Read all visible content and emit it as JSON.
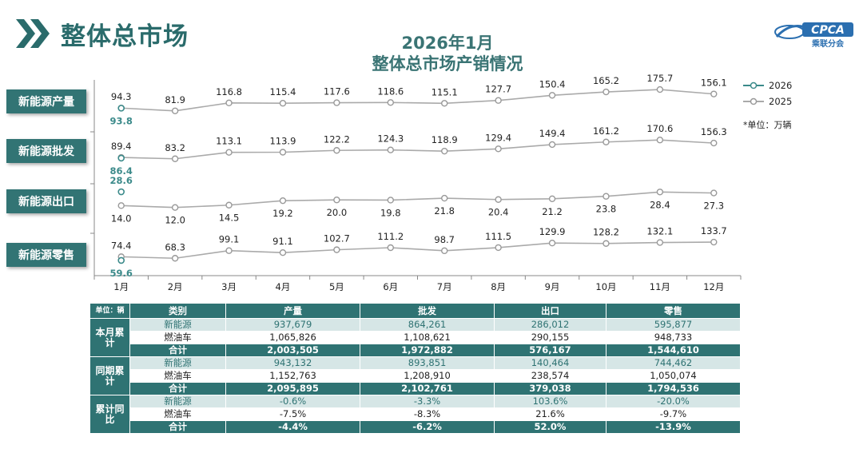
{
  "header": {
    "title": "整体总市场",
    "chart_title_line1": "2026年1月",
    "chart_title_line2": "整体总市场产销情况"
  },
  "logo": {
    "main": "CPCA",
    "sub": "乘联分会"
  },
  "legend": {
    "series_2026": "2026",
    "series_2025": "2025"
  },
  "unit_note": "*单位：万辆",
  "colors": {
    "accent": "#327474",
    "series_2026": "#3b8a8a",
    "series_2025": "#aaaaaa",
    "table_light": "#d6e6e6"
  },
  "chart_data": {
    "type": "line",
    "x": [
      "1月",
      "2月",
      "3月",
      "4月",
      "5月",
      "6月",
      "7月",
      "8月",
      "9月",
      "10月",
      "11月",
      "12月"
    ],
    "unit": "万辆",
    "panels": [
      {
        "label": "新能源产量",
        "series": [
          {
            "name": "2025",
            "values": [
              94.3,
              81.9,
              116.8,
              115.4,
              117.6,
              118.6,
              115.1,
              127.7,
              150.4,
              165.2,
              175.7,
              156.1
            ]
          },
          {
            "name": "2026",
            "values": [
              93.8
            ]
          }
        ]
      },
      {
        "label": "新能源批发",
        "series": [
          {
            "name": "2025",
            "values": [
              89.4,
              83.2,
              113.1,
              113.9,
              122.2,
              124.3,
              118.9,
              129.4,
              149.4,
              161.2,
              170.6,
              156.3
            ]
          },
          {
            "name": "2026",
            "values": [
              86.4
            ]
          }
        ]
      },
      {
        "label": "新能源出口",
        "series": [
          {
            "name": "2025",
            "values": [
              14.0,
              12.0,
              14.5,
              19.2,
              20.0,
              19.8,
              21.8,
              20.4,
              21.2,
              23.8,
              28.4,
              27.3
            ]
          },
          {
            "name": "2026",
            "values": [
              28.6
            ]
          }
        ]
      },
      {
        "label": "新能源零售",
        "series": [
          {
            "name": "2025",
            "values": [
              74.4,
              68.3,
              99.1,
              91.1,
              102.7,
              111.2,
              98.7,
              111.5,
              129.9,
              128.2,
              132.1,
              133.7
            ]
          },
          {
            "name": "2026",
            "values": [
              59.6
            ]
          }
        ]
      }
    ]
  },
  "table": {
    "unit_label": "单位：辆",
    "headers": [
      "类别",
      "产量",
      "批发",
      "出口",
      "零售"
    ],
    "groups": [
      {
        "label": "本月累计",
        "rows": [
          {
            "type": "nev",
            "cells": [
              "新能源",
              "937,679",
              "864,261",
              "286,012",
              "595,877"
            ]
          },
          {
            "type": "ice",
            "cells": [
              "燃油车",
              "1,065,826",
              "1,108,621",
              "290,155",
              "948,733"
            ]
          },
          {
            "type": "sum",
            "cells": [
              "合计",
              "2,003,505",
              "1,972,882",
              "576,167",
              "1,544,610"
            ]
          }
        ]
      },
      {
        "label": "同期累计",
        "rows": [
          {
            "type": "nev",
            "cells": [
              "新能源",
              "943,132",
              "893,851",
              "140,464",
              "744,462"
            ]
          },
          {
            "type": "ice",
            "cells": [
              "燃油车",
              "1,152,763",
              "1,208,910",
              "238,574",
              "1,050,074"
            ]
          },
          {
            "type": "sum",
            "cells": [
              "合计",
              "2,095,895",
              "2,102,761",
              "379,038",
              "1,794,536"
            ]
          }
        ]
      },
      {
        "label": "累计同比",
        "rows": [
          {
            "type": "nev",
            "cells": [
              "新能源",
              "-0.6%",
              "-3.3%",
              "103.6%",
              "-20.0%"
            ]
          },
          {
            "type": "ice",
            "cells": [
              "燃油车",
              "-7.5%",
              "-8.3%",
              "21.6%",
              "-9.7%"
            ]
          },
          {
            "type": "sum",
            "cells": [
              "合计",
              "-4.4%",
              "-6.2%",
              "52.0%",
              "-13.9%"
            ]
          }
        ]
      }
    ]
  }
}
